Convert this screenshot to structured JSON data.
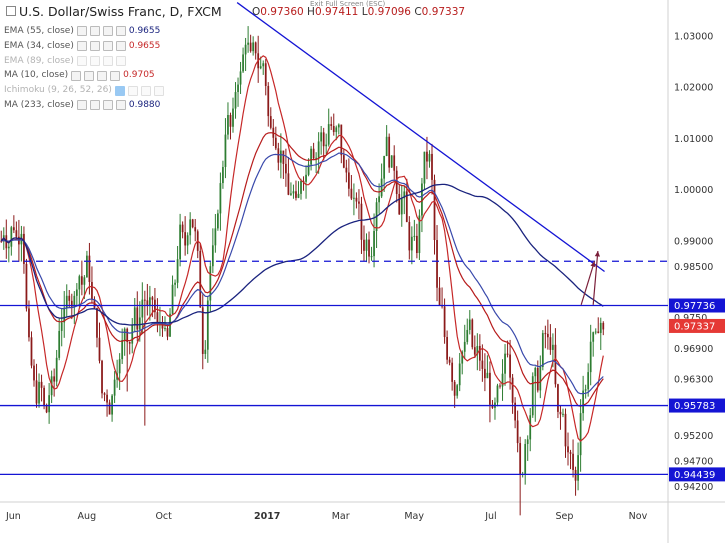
{
  "header": {
    "title": "U.S. Dollar/Swiss Franc, D, FXCM",
    "ohlc": [
      {
        "k": "O",
        "v": "0.97360"
      },
      {
        "k": "H",
        "v": "0.97411"
      },
      {
        "k": "L",
        "v": "0.97096"
      },
      {
        "k": "C",
        "v": "0.97337"
      }
    ],
    "exit_fullscreen": "Exit Full Screen (ESC)"
  },
  "legend": [
    {
      "label": "EMA (55, close)",
      "value": "0.9655",
      "color": "#1a237e",
      "dim": false
    },
    {
      "label": "EMA (34, close)",
      "value": "0.9655",
      "color": "#c62828",
      "dim": false
    },
    {
      "label": "EMA (89, close)",
      "value": "",
      "color": "#1565c0",
      "dim": true
    },
    {
      "label": "MA (10, close)",
      "value": "0.9705",
      "color": "#c62828",
      "dim": false
    },
    {
      "label": "Ichimoku (9, 26, 52, 26)",
      "value": "",
      "color": "#1565c0",
      "dim": true
    },
    {
      "label": "MA (233, close)",
      "value": "0.9880",
      "color": "#1a237e",
      "dim": false
    }
  ],
  "colors": {
    "up": "#2e7d32",
    "down": "#8b1a1a",
    "support_line": "#1414d4",
    "current_price": "#e53935",
    "ma233": "#1a237e",
    "ema55": "#3949ab",
    "ma10": "#c62828",
    "arrows": "#7b1f3a"
  },
  "chart_data": {
    "type": "candlestick",
    "ylim": [
      0.939,
      1.037
    ],
    "y_ticks": [
      {
        "v": 1.03,
        "label": "1.03000"
      },
      {
        "v": 1.02,
        "label": "1.02000"
      },
      {
        "v": 1.01,
        "label": "1.01000"
      },
      {
        "v": 1.0,
        "label": "1.00000"
      },
      {
        "v": 0.99,
        "label": "0.99000"
      },
      {
        "v": 0.985,
        "label": "0.98500"
      },
      {
        "v": 0.969,
        "label": "0.96900"
      },
      {
        "v": 0.963,
        "label": "0.96300"
      },
      {
        "v": 0.952,
        "label": "0.95200"
      },
      {
        "v": 0.947,
        "label": "0.94700"
      },
      {
        "v": 0.942,
        "label": "0.94200"
      }
    ],
    "x_labels": [
      {
        "t": 0.02,
        "label": "Jun",
        "bold": false
      },
      {
        "t": 0.13,
        "label": "Aug",
        "bold": false
      },
      {
        "t": 0.245,
        "label": "Oct",
        "bold": false
      },
      {
        "t": 0.4,
        "label": "2017",
        "bold": true
      },
      {
        "t": 0.51,
        "label": "Mar",
        "bold": false
      },
      {
        "t": 0.62,
        "label": "May",
        "bold": false
      },
      {
        "t": 0.735,
        "label": "Jul",
        "bold": false
      },
      {
        "t": 0.845,
        "label": "Sep",
        "bold": false
      },
      {
        "t": 0.955,
        "label": "Nov",
        "bold": false
      }
    ],
    "horizontal_levels": [
      {
        "v": 0.97736,
        "label": "0.97736",
        "style": "solid"
      },
      {
        "v": 0.95783,
        "label": "0.95783",
        "style": "solid"
      },
      {
        "v": 0.94439,
        "label": "0.94439",
        "style": "solid"
      },
      {
        "v": 0.986,
        "label": "",
        "style": "dashed"
      }
    ],
    "current_price": {
      "v": 0.97337,
      "label": "0.97337"
    },
    "partial_label": "0.9750",
    "trendline": [
      {
        "t": 0.355,
        "v": 1.0365
      },
      {
        "t": 0.905,
        "v": 0.984
      }
    ],
    "arrows": [
      {
        "from": {
          "t": 0.87,
          "v": 0.9775
        },
        "to": {
          "t": 0.89,
          "v": 0.986
        }
      },
      {
        "from": {
          "t": 0.888,
          "v": 0.9775
        },
        "to": {
          "t": 0.895,
          "v": 0.988
        }
      }
    ],
    "key_points": [
      {
        "t": 0.0,
        "v": 0.99
      },
      {
        "t": 0.03,
        "v": 0.992
      },
      {
        "t": 0.05,
        "v": 0.962
      },
      {
        "t": 0.07,
        "v": 0.958
      },
      {
        "t": 0.1,
        "v": 0.978
      },
      {
        "t": 0.13,
        "v": 0.984
      },
      {
        "t": 0.16,
        "v": 0.958
      },
      {
        "t": 0.19,
        "v": 0.972
      },
      {
        "t": 0.22,
        "v": 0.978
      },
      {
        "t": 0.25,
        "v": 0.972
      },
      {
        "t": 0.27,
        "v": 0.99
      },
      {
        "t": 0.29,
        "v": 0.994
      },
      {
        "t": 0.305,
        "v": 0.97
      },
      {
        "t": 0.32,
        "v": 0.99
      },
      {
        "t": 0.34,
        "v": 1.012
      },
      {
        "t": 0.37,
        "v": 1.028
      },
      {
        "t": 0.39,
        "v": 1.025
      },
      {
        "t": 0.41,
        "v": 1.01
      },
      {
        "t": 0.44,
        "v": 0.998
      },
      {
        "t": 0.47,
        "v": 1.008
      },
      {
        "t": 0.5,
        "v": 1.012
      },
      {
        "t": 0.53,
        "v": 0.998
      },
      {
        "t": 0.55,
        "v": 0.988
      },
      {
        "t": 0.58,
        "v": 1.008
      },
      {
        "t": 0.6,
        "v": 0.998
      },
      {
        "t": 0.62,
        "v": 0.988
      },
      {
        "t": 0.64,
        "v": 1.008
      },
      {
        "t": 0.66,
        "v": 0.975
      },
      {
        "t": 0.68,
        "v": 0.962
      },
      {
        "t": 0.7,
        "v": 0.972
      },
      {
        "t": 0.72,
        "v": 0.966
      },
      {
        "t": 0.74,
        "v": 0.957
      },
      {
        "t": 0.76,
        "v": 0.968
      },
      {
        "t": 0.78,
        "v": 0.945
      },
      {
        "t": 0.8,
        "v": 0.962
      },
      {
        "t": 0.82,
        "v": 0.972
      },
      {
        "t": 0.84,
        "v": 0.955
      },
      {
        "t": 0.86,
        "v": 0.944
      },
      {
        "t": 0.875,
        "v": 0.962
      },
      {
        "t": 0.89,
        "v": 0.972
      },
      {
        "t": 0.905,
        "v": 0.9734
      }
    ]
  }
}
